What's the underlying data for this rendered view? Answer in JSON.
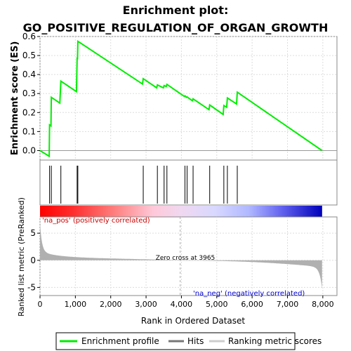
{
  "chart_data": {
    "type": "line",
    "title_line1": "Enrichment plot:",
    "title_line2": "GO_POSITIVE_REGULATION_OF_ORGAN_GROWTH",
    "xlabel": "Rank in Ordered Dataset",
    "ylabel_top": "Enrichment score (ES)",
    "ylabel_bottom": "Ranked list metric (PreRanked)",
    "xlim": [
      0,
      8400
    ],
    "es_ylim": [
      -0.05,
      0.6
    ],
    "metric_ylim": [
      -6.5,
      8
    ],
    "x_ticks": [
      0,
      1000,
      2000,
      3000,
      4000,
      5000,
      6000,
      7000,
      8000
    ],
    "x_tick_labels": [
      "0",
      "1,000",
      "2,000",
      "3,000",
      "4,000",
      "5,000",
      "6,000",
      "7,000",
      "8,000"
    ],
    "es_ticks": [
      0.0,
      0.1,
      0.2,
      0.3,
      0.4,
      0.5,
      0.6
    ],
    "es_tick_labels": [
      "0.0",
      "0.1",
      "0.2",
      "0.3",
      "0.4",
      "0.5",
      "0.6"
    ],
    "metric_ticks": [
      -5,
      0,
      5
    ],
    "metric_tick_labels": [
      "-5",
      "0",
      "5"
    ],
    "grid": true,
    "series": [
      {
        "name": "Enrichment profile",
        "color": "#00ee00",
        "points": [
          [
            0,
            0.0
          ],
          [
            260,
            -0.03
          ],
          [
            270,
            0.135
          ],
          [
            310,
            0.13
          ],
          [
            320,
            0.28
          ],
          [
            560,
            0.25
          ],
          [
            590,
            0.365
          ],
          [
            1030,
            0.31
          ],
          [
            1050,
            0.49
          ],
          [
            1060,
            0.48
          ],
          [
            1070,
            0.575
          ],
          [
            2900,
            0.35
          ],
          [
            2920,
            0.378
          ],
          [
            3300,
            0.33
          ],
          [
            3320,
            0.345
          ],
          [
            3490,
            0.33
          ],
          [
            3510,
            0.342
          ],
          [
            3570,
            0.337
          ],
          [
            3590,
            0.348
          ],
          [
            4080,
            0.285
          ],
          [
            4100,
            0.288
          ],
          [
            4140,
            0.28
          ],
          [
            4160,
            0.282
          ],
          [
            4310,
            0.262
          ],
          [
            4330,
            0.272
          ],
          [
            4780,
            0.215
          ],
          [
            4800,
            0.24
          ],
          [
            5180,
            0.19
          ],
          [
            5200,
            0.237
          ],
          [
            5280,
            0.228
          ],
          [
            5300,
            0.277
          ],
          [
            5560,
            0.245
          ],
          [
            5580,
            0.307
          ],
          [
            7980,
            0.0
          ]
        ]
      }
    ],
    "hits": [
      270,
      320,
      590,
      1050,
      1070,
      2920,
      3320,
      3510,
      3590,
      4100,
      4160,
      4330,
      4800,
      5200,
      5300,
      5580
    ],
    "hits_label": "Hits",
    "metric_label": "Ranking metric scores",
    "total_ranks": 7980,
    "zero_cross": 3965,
    "zero_cross_text": "Zero cross at 3965",
    "na_pos_text": "'na_pos' (positively correlated)",
    "na_neg_text": "'na_neg' (negatively correlated)",
    "colors": {
      "profile": "#00ee00",
      "hit": "#000000",
      "metric_fill": "#b0b0b0",
      "pos_label": "#cc0000",
      "neg_label": "#0000cc",
      "grid": "#dddddd"
    }
  }
}
